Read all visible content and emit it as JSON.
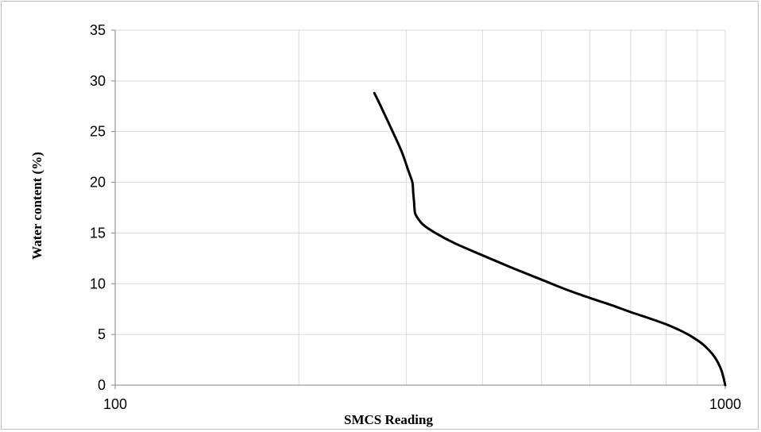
{
  "chart_data": {
    "type": "line",
    "title": "",
    "xlabel": "SMCS Reading",
    "ylabel": "Water content (%)",
    "x_scale": "log",
    "xlim": [
      100,
      1000
    ],
    "ylim": [
      0,
      35
    ],
    "x_ticks": [
      100,
      1000
    ],
    "y_ticks": [
      0,
      5,
      10,
      15,
      20,
      25,
      30,
      35
    ],
    "x_tick_labels": [
      "100",
      "1000"
    ],
    "y_tick_labels": [
      "0",
      "5",
      "10",
      "15",
      "20",
      "25",
      "30",
      "35"
    ],
    "grid": true,
    "legend": "none",
    "series": [
      {
        "color": "#000000",
        "x": [
          266,
          275,
          285,
          295,
          303,
          307,
          308,
          309,
          310,
          313,
          320,
          335,
          360,
          400,
          450,
          500,
          550,
          600,
          650,
          700,
          750,
          800,
          850,
          880,
          920,
          960,
          985,
          1000
        ],
        "y": [
          28.8,
          27.0,
          25.0,
          23.0,
          21.0,
          20.0,
          19.0,
          18.0,
          17.0,
          16.5,
          15.8,
          15.0,
          14.0,
          12.8,
          11.5,
          10.4,
          9.4,
          8.6,
          7.9,
          7.2,
          6.6,
          6.0,
          5.3,
          4.8,
          4.0,
          2.8,
          1.5,
          0.0
        ]
      }
    ]
  }
}
